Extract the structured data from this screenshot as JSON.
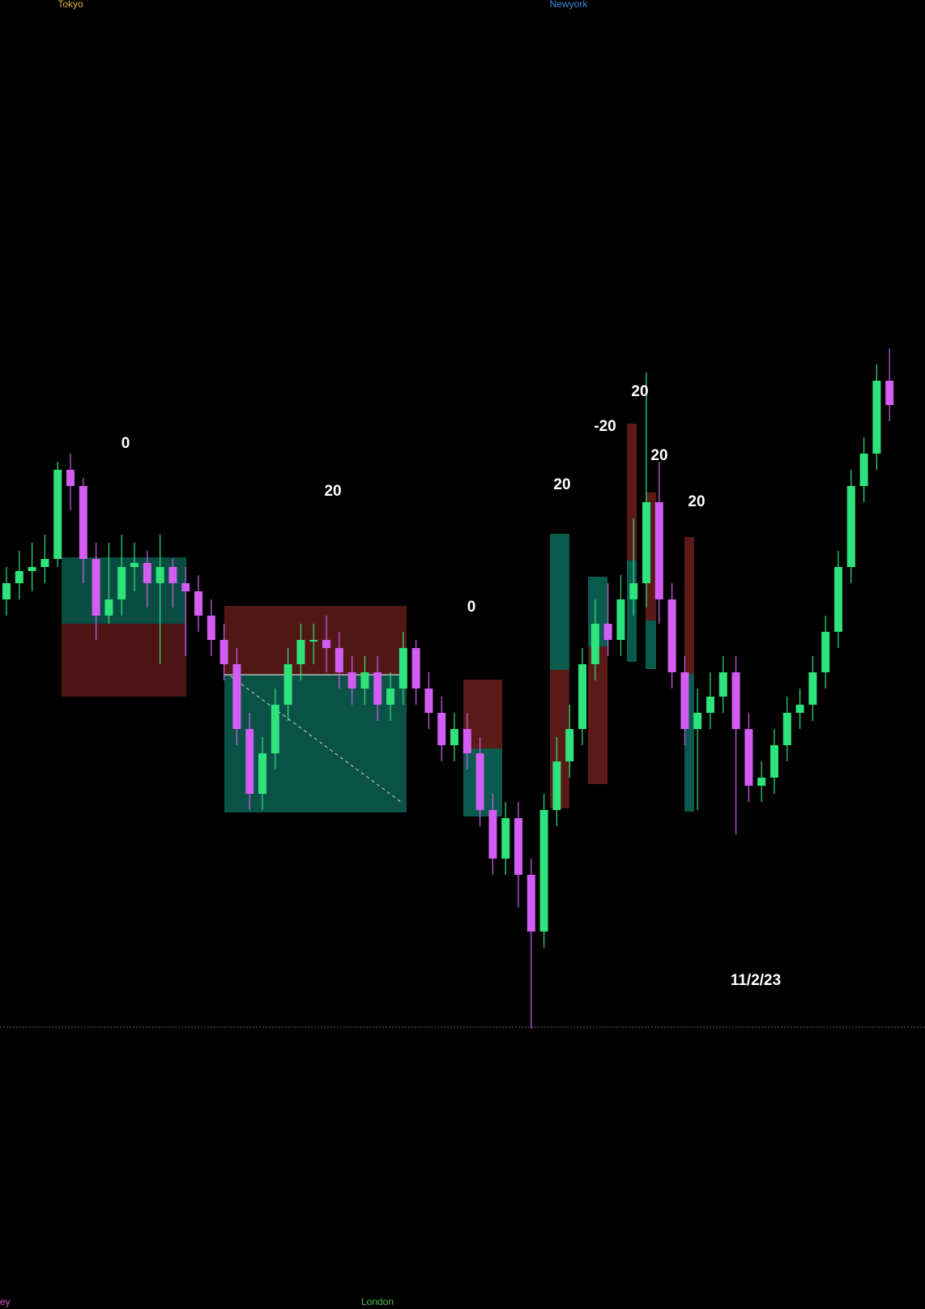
{
  "chart_data": {
    "type": "candlestick",
    "sessions": [
      "Tokyo",
      "Newyork",
      "ey",
      "London"
    ],
    "annotations": [
      "0",
      "20",
      "0",
      "20",
      "-20",
      "20",
      "20",
      "20",
      "11/2/23"
    ],
    "ylim": [
      -34.6,
      127
    ],
    "up_color": "#2fe37c",
    "down_color": "#d35cf2",
    "open": [
      53,
      55,
      56.5,
      57,
      58,
      69,
      67,
      58,
      51,
      53,
      57,
      57.5,
      55,
      57,
      55,
      54,
      51,
      48,
      45,
      37,
      29,
      34,
      40,
      45,
      48,
      48,
      47,
      44,
      42,
      44,
      40,
      42,
      47,
      42,
      39,
      35,
      37,
      34,
      27,
      21,
      26,
      19,
      12,
      27,
      33,
      37,
      45,
      50,
      48,
      53,
      55,
      65,
      53,
      44,
      37,
      39,
      41,
      44,
      37,
      30,
      31,
      35,
      39,
      40,
      44,
      49,
      57,
      67,
      71,
      80
    ],
    "high": [
      57,
      59,
      60,
      61,
      70,
      71,
      68,
      60,
      60,
      61,
      60,
      59,
      61,
      58,
      57,
      56,
      53,
      50,
      47,
      39,
      36,
      42,
      47,
      50,
      50,
      51,
      49,
      46,
      46,
      46,
      44,
      49,
      48,
      44,
      41,
      39,
      39,
      36,
      29,
      28,
      28,
      21,
      29,
      36,
      40,
      47,
      53,
      55,
      56,
      63,
      81,
      70,
      55,
      46,
      42,
      44,
      46,
      46,
      39,
      33,
      37,
      41,
      42,
      46,
      51,
      59,
      69,
      73,
      82,
      84
    ],
    "low": [
      51,
      53,
      54,
      55,
      57,
      64,
      55,
      48,
      50,
      51,
      54,
      52,
      45,
      52,
      46,
      49,
      46,
      43,
      35,
      27,
      27,
      32,
      38,
      43,
      45,
      44,
      42,
      40,
      40,
      38,
      38,
      40,
      40,
      37,
      33,
      33,
      32,
      25,
      19,
      19,
      15,
      0,
      10,
      25,
      31,
      35,
      43,
      46,
      46,
      51,
      52,
      50,
      42,
      35,
      27,
      37,
      39,
      24,
      28,
      28,
      29,
      33,
      37,
      38,
      42,
      47,
      55,
      65,
      69,
      75
    ],
    "close": [
      55,
      56.5,
      57,
      58,
      69,
      67,
      58,
      51,
      53,
      57,
      57.5,
      55,
      57,
      55,
      54,
      51,
      48,
      45,
      37,
      29,
      34,
      40,
      45,
      48,
      48,
      47,
      44,
      42,
      44,
      40,
      42,
      47,
      42,
      39,
      35,
      37,
      34,
      27,
      21,
      26,
      19,
      12,
      27,
      33,
      37,
      45,
      50,
      48,
      53,
      55,
      65,
      53,
      44,
      37,
      39,
      41,
      44,
      37,
      30,
      31,
      35,
      39,
      40,
      44,
      49,
      57,
      67,
      71,
      80,
      77
    ]
  }
}
